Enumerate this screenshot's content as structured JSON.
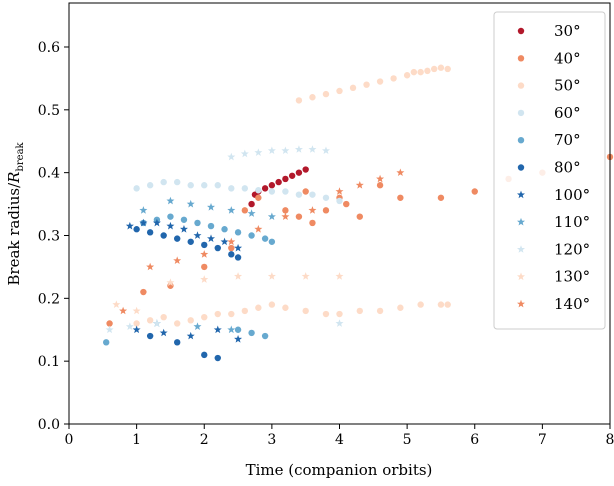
{
  "chart_data": {
    "type": "scatter",
    "xlabel": "Time (companion orbits)",
    "ylabel_main": "Break radius/",
    "ylabel_italic": "R",
    "ylabel_sub": "break",
    "xlim": [
      0,
      8
    ],
    "ylim": [
      0.0,
      0.67
    ],
    "xticks": [
      "0",
      "1",
      "2",
      "3",
      "4",
      "5",
      "6",
      "7",
      "8"
    ],
    "yticks": [
      "0.0",
      "0.1",
      "0.2",
      "0.3",
      "0.4",
      "0.5",
      "0.6"
    ],
    "grid": false,
    "legend_position": "top-right",
    "series": [
      {
        "name": "30°",
        "marker": "circle",
        "color": "#b2182b",
        "x": [
          2.7,
          2.75,
          2.8,
          2.9,
          3.0,
          3.1,
          3.2,
          3.3,
          3.4,
          3.5
        ],
        "y": [
          0.35,
          0.365,
          0.37,
          0.375,
          0.38,
          0.385,
          0.39,
          0.395,
          0.4,
          0.405
        ]
      },
      {
        "name": "40°",
        "marker": "circle",
        "color": "#ef8a62",
        "x": [
          0.6,
          1.1,
          1.5,
          2.0,
          2.4,
          2.6,
          2.8,
          3.2,
          3.4,
          3.5,
          3.6,
          3.8,
          4.0,
          4.1,
          4.3,
          4.6,
          4.9,
          5.5,
          6.0,
          6.5,
          7.0,
          8.0
        ],
        "y": [
          0.16,
          0.21,
          0.22,
          0.25,
          0.28,
          0.34,
          0.36,
          0.34,
          0.33,
          0.37,
          0.32,
          0.34,
          0.36,
          0.35,
          0.33,
          0.38,
          0.36,
          0.36,
          0.37,
          0.39,
          0.4,
          0.425
        ]
      },
      {
        "name": "50°",
        "marker": "circle",
        "color": "#fddbc7",
        "x": [
          3.4,
          3.6,
          3.8,
          4.0,
          4.2,
          4.4,
          4.6,
          4.8,
          5.0,
          5.1,
          5.2,
          5.3,
          5.4,
          5.5,
          5.6,
          1.0,
          1.2,
          1.4,
          1.6,
          1.8,
          2.0,
          2.2,
          2.4,
          2.6,
          2.8,
          3.0,
          3.2,
          3.5,
          3.8,
          4.0,
          4.3,
          4.6,
          4.9,
          5.2,
          5.5,
          5.6
        ],
        "y": [
          0.515,
          0.52,
          0.525,
          0.53,
          0.535,
          0.54,
          0.545,
          0.55,
          0.555,
          0.56,
          0.56,
          0.562,
          0.565,
          0.567,
          0.565,
          0.16,
          0.165,
          0.17,
          0.16,
          0.165,
          0.17,
          0.175,
          0.175,
          0.18,
          0.185,
          0.19,
          0.185,
          0.18,
          0.175,
          0.175,
          0.18,
          0.18,
          0.185,
          0.19,
          0.19,
          0.19
        ]
      },
      {
        "name": "60°",
        "marker": "circle",
        "color": "#d1e5f0",
        "x": [
          1.0,
          1.2,
          1.4,
          1.6,
          1.8,
          2.0,
          2.2,
          2.4,
          2.6,
          2.8,
          3.0,
          3.2,
          3.4,
          3.6,
          3.8,
          4.0
        ],
        "y": [
          0.375,
          0.38,
          0.385,
          0.385,
          0.38,
          0.38,
          0.38,
          0.375,
          0.375,
          0.372,
          0.37,
          0.37,
          0.365,
          0.365,
          0.36,
          0.355
        ]
      },
      {
        "name": "70°",
        "marker": "circle",
        "color": "#67a9cf",
        "x": [
          0.55,
          1.1,
          1.3,
          1.5,
          1.7,
          1.9,
          2.1,
          2.3,
          2.5,
          2.7,
          2.9,
          3.0,
          2.5,
          2.7,
          2.9
        ],
        "y": [
          0.13,
          0.32,
          0.325,
          0.33,
          0.325,
          0.32,
          0.315,
          0.31,
          0.305,
          0.3,
          0.295,
          0.29,
          0.15,
          0.145,
          0.14
        ]
      },
      {
        "name": "80°",
        "marker": "circle",
        "color": "#2166ac",
        "x": [
          1.0,
          1.2,
          1.4,
          1.6,
          1.8,
          2.0,
          2.2,
          2.4,
          2.5,
          1.2,
          1.6,
          2.0,
          2.2
        ],
        "y": [
          0.31,
          0.305,
          0.3,
          0.295,
          0.29,
          0.285,
          0.28,
          0.27,
          0.265,
          0.14,
          0.13,
          0.11,
          0.105
        ]
      },
      {
        "name": "100°",
        "marker": "star",
        "color": "#2166ac",
        "x": [
          0.9,
          1.1,
          1.3,
          1.5,
          1.7,
          1.9,
          2.1,
          2.3,
          2.5,
          1.0,
          1.4,
          1.8,
          2.2,
          2.5
        ],
        "y": [
          0.315,
          0.32,
          0.32,
          0.315,
          0.31,
          0.3,
          0.295,
          0.29,
          0.28,
          0.15,
          0.145,
          0.14,
          0.15,
          0.135
        ]
      },
      {
        "name": "110°",
        "marker": "star",
        "color": "#67a9cf",
        "x": [
          1.1,
          1.5,
          1.8,
          2.1,
          2.4,
          2.7,
          3.0,
          1.3,
          1.9,
          2.4
        ],
        "y": [
          0.34,
          0.355,
          0.35,
          0.345,
          0.34,
          0.335,
          0.33,
          0.16,
          0.155,
          0.15
        ]
      },
      {
        "name": "120°",
        "marker": "star",
        "color": "#d1e5f0",
        "x": [
          0.6,
          0.9,
          1.3,
          2.4,
          2.6,
          2.8,
          3.0,
          3.2,
          3.4,
          3.6,
          3.8,
          4.0
        ],
        "y": [
          0.15,
          0.155,
          0.16,
          0.425,
          0.43,
          0.432,
          0.435,
          0.435,
          0.437,
          0.437,
          0.435,
          0.16
        ]
      },
      {
        "name": "130°",
        "marker": "star",
        "color": "#fddbc7",
        "x": [
          0.7,
          1.0,
          1.5,
          2.0,
          2.5,
          3.0,
          3.5,
          4.0
        ],
        "y": [
          0.19,
          0.18,
          0.225,
          0.23,
          0.235,
          0.235,
          0.235,
          0.235
        ]
      },
      {
        "name": "140°",
        "marker": "star",
        "color": "#ef8a62",
        "x": [
          0.8,
          1.2,
          1.6,
          2.0,
          2.4,
          2.8,
          3.2,
          3.6,
          4.0,
          4.3,
          4.6,
          4.9
        ],
        "y": [
          0.18,
          0.25,
          0.26,
          0.27,
          0.29,
          0.31,
          0.33,
          0.34,
          0.37,
          0.38,
          0.39,
          0.4
        ]
      }
    ]
  }
}
